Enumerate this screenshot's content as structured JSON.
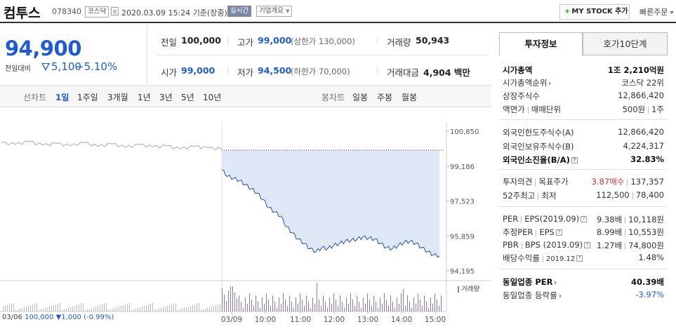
{
  "header": {
    "stock_name": "컴투스",
    "stock_code": "078340",
    "market": "코스닥",
    "datetime": "2020.03.09 15:24",
    "basis": "기준(장중)",
    "live_badge": "실시간",
    "company_info": "기업개요",
    "mystock_button": "MY STOCK 추가",
    "quick_order": "빠른주문"
  },
  "price": {
    "current": "94,900",
    "diff_label": "전일대비",
    "diff_value": "5,100",
    "diff_rate": "−5.10%"
  },
  "summary": {
    "prev_label": "전일",
    "prev_value": "100,000",
    "high_label": "고가",
    "high_value": "99,000",
    "upper_limit": "(상한가 130,000)",
    "volume_label": "거래량",
    "volume_value": "50,943",
    "open_label": "시가",
    "open_value": "99,000",
    "low_label": "저가",
    "low_value": "94,500",
    "lower_limit": "(하한가 70,000)",
    "amount_label": "거래대금",
    "amount_value": "4,904",
    "amount_unit": "백만"
  },
  "period_tabs": {
    "line_label": "선차트",
    "items": [
      "1일",
      "1주일",
      "3개월",
      "1년",
      "3년",
      "5년",
      "10년"
    ],
    "active": "1일",
    "candle_label": "봉차트",
    "candle_items": [
      "일봉",
      "주봉",
      "월봉"
    ]
  },
  "chart_data": {
    "type": "line",
    "y_ticks": [
      "100,850",
      "99,186",
      "97,523",
      "95,859",
      "94,195"
    ],
    "ylim": [
      94195,
      100850
    ],
    "reference_price": 100000,
    "x_ticks": [
      "03/06",
      "03/09",
      "10:00",
      "11:00",
      "12:00",
      "13:00",
      "14:00",
      "15:00"
    ],
    "volume_legend": "거래량",
    "prev_day": {
      "label": "03/06",
      "close_value": "100,000",
      "diff": "1,000",
      "rate": "(-0.99%)"
    },
    "series_prev": [
      100300,
      100220,
      100350,
      100180,
      100260,
      100150,
      100300,
      100120,
      100240,
      100080,
      100200,
      100100,
      100150,
      100000,
      100120,
      100050,
      100000
    ],
    "series_today": [
      99000,
      98700,
      98600,
      98500,
      98300,
      98100,
      97900,
      97600,
      97200,
      97000,
      96800,
      96300,
      96000,
      95700,
      95500,
      95250,
      95100,
      95300,
      95250,
      95400,
      95500,
      95600,
      95650,
      95700,
      95800,
      95750,
      95700,
      95500,
      95300,
      95250,
      95400,
      95550,
      95600,
      95500,
      95300,
      95100,
      94950,
      94900
    ]
  },
  "right_panel": {
    "tabs": [
      "투자정보",
      "호가10단계"
    ],
    "market_cap_label": "시가총액",
    "market_cap_value": "1조 2,210억원",
    "cap_rank_label": "시가총액순위",
    "cap_rank_value": "코스닥 22위",
    "shares_label": "상장주식수",
    "shares_value": "12,866,420",
    "facevalue_label": "액면가",
    "tradeunit_label": "매매단위",
    "facevalue_value": "500원",
    "tradeunit_value": "1주",
    "foreign_limit_label": "외국인한도주식수(A)",
    "foreign_limit_value": "12,866,420",
    "foreign_hold_label": "외국인보유주식수(B)",
    "foreign_hold_value": "4,224,317",
    "foreign_ratio_label": "외국인소진율(B/A)",
    "foreign_ratio_value": "32.83%",
    "opinion_label": "투자의견",
    "target_label": "목표주가",
    "opinion_value": "3.87매수",
    "target_value": "137,357",
    "w52_high_label": "52주최고",
    "w52_low_label": "최저",
    "w52_high_value": "112,500",
    "w52_low_value": "78,400",
    "per_label": "PER",
    "eps_label": "EPS(2019.09)",
    "per_value": "9.38배",
    "eps_value": "10,118원",
    "est_per_label": "추정PER",
    "est_eps_label": "EPS",
    "est_per_value": "8.99배",
    "est_eps_value": "10,553원",
    "pbr_label": "PBR",
    "bps_label": "BPS (2019.09)",
    "pbr_value": "1.27배",
    "bps_value": "74,800원",
    "dividend_label": "배당수익률",
    "dividend_date": "2019.12",
    "dividend_value": "1.48%",
    "ind_per_label": "동일업종 PER",
    "ind_per_value": "40.39배",
    "ind_change_label": "동일업종 등락률",
    "ind_change_value": "-3.97%"
  }
}
